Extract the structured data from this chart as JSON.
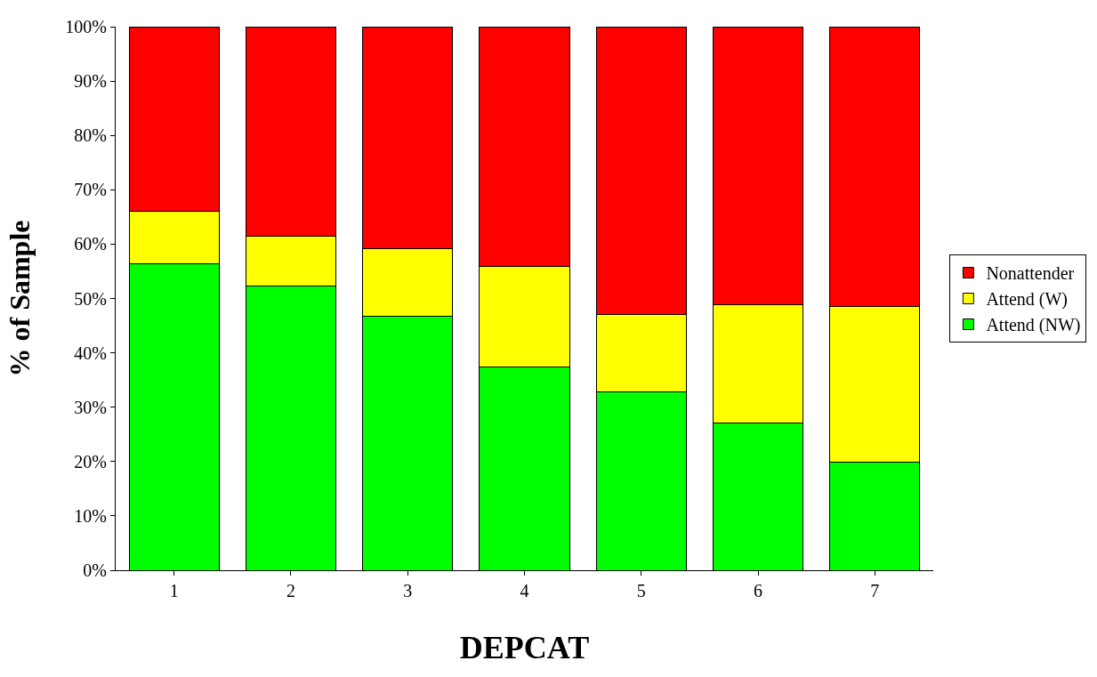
{
  "chart_data": {
    "type": "bar",
    "stacked": true,
    "xlabel": "DEPCAT",
    "ylabel": "% of Sample",
    "categories": [
      "1",
      "2",
      "3",
      "4",
      "5",
      "6",
      "7"
    ],
    "series": [
      {
        "name": "Attend (NW)",
        "color": "#00ff00",
        "values": [
          56.4,
          52.3,
          46.7,
          37.4,
          32.8,
          27.1,
          19.9
        ]
      },
      {
        "name": "Attend (W)",
        "color": "#ffff00",
        "values": [
          9.6,
          9.1,
          12.5,
          18.5,
          14.2,
          21.8,
          28.6
        ]
      },
      {
        "name": "Nonattender",
        "color": "#ff0000",
        "values": [
          34.0,
          38.6,
          40.8,
          44.1,
          53.0,
          51.1,
          51.5
        ]
      }
    ],
    "ylim": [
      0,
      100
    ],
    "yticks": [
      {
        "value": 0,
        "label": "0%"
      },
      {
        "value": 10,
        "label": "10%"
      },
      {
        "value": 20,
        "label": "20%"
      },
      {
        "value": 30,
        "label": "30%"
      },
      {
        "value": 40,
        "label": "40%"
      },
      {
        "value": 50,
        "label": "50%"
      },
      {
        "value": 60,
        "label": "60%"
      },
      {
        "value": 70,
        "label": "70%"
      },
      {
        "value": 80,
        "label": "80%"
      },
      {
        "value": 90,
        "label": "90%"
      },
      {
        "value": 100,
        "label": "100%"
      }
    ],
    "grid": false,
    "legend": "right"
  }
}
